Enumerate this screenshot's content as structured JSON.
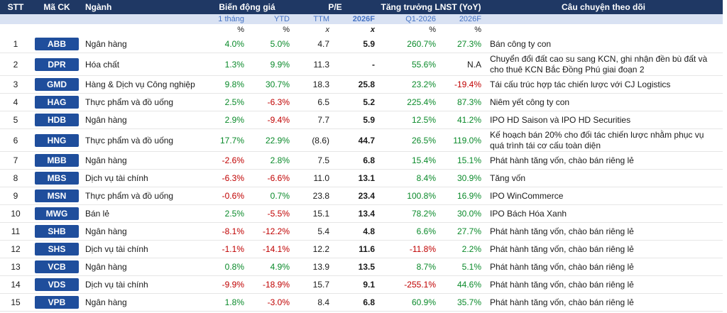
{
  "headers": {
    "stt": "STT",
    "ma_ck": "Mã CK",
    "nganh": "Ngành",
    "bien_dong": "Biến động giá",
    "pe": "P/E",
    "tang_truong": "Tăng trưởng LNST (YoY)",
    "cau_chuyen": "Câu chuyện theo dõi",
    "sub_1thang": "1 tháng",
    "sub_ytd": "YTD",
    "sub_ttm": "TTM",
    "sub_2026f_pe": "2026F",
    "sub_q1": "Q1-2026",
    "sub_2026f_g": "2026F",
    "unit_pct": "%",
    "unit_x": "x"
  },
  "rows": [
    {
      "stt": "1",
      "ticker": "ABB",
      "nganh": "Ngân hàng",
      "m1": "4.0%",
      "m1_sign": "pos",
      "ytd": "5.0%",
      "ytd_sign": "pos",
      "ttm": "4.7",
      "pe26": "5.9",
      "q1": "260.7%",
      "q1_sign": "pos",
      "g26": "27.3%",
      "g26_sign": "pos",
      "story": "Bán công ty con"
    },
    {
      "stt": "2",
      "ticker": "DPR",
      "nganh": "Hóa chất",
      "m1": "1.3%",
      "m1_sign": "pos",
      "ytd": "9.9%",
      "ytd_sign": "pos",
      "ttm": "11.3",
      "pe26": "-",
      "q1": "55.6%",
      "q1_sign": "pos",
      "g26": "N.A",
      "g26_sign": "none",
      "story": "Chuyển đổi đất cao su sang KCN, ghi nhận đền bù đất và cho thuê KCN Bắc Đồng Phú giai đoạn 2"
    },
    {
      "stt": "3",
      "ticker": "GMD",
      "nganh": "Hàng & Dịch vụ Công nghiệp",
      "m1": "9.8%",
      "m1_sign": "pos",
      "ytd": "30.7%",
      "ytd_sign": "pos",
      "ttm": "18.3",
      "pe26": "25.8",
      "q1": "23.2%",
      "q1_sign": "pos",
      "g26": "-19.4%",
      "g26_sign": "neg",
      "story": "Tái cấu trúc hợp tác chiến lược với CJ Logistics"
    },
    {
      "stt": "4",
      "ticker": "HAG",
      "nganh": "Thực phẩm và đồ uống",
      "m1": "2.5%",
      "m1_sign": "pos",
      "ytd": "-6.3%",
      "ytd_sign": "neg",
      "ttm": "6.5",
      "pe26": "5.2",
      "q1": "225.4%",
      "q1_sign": "pos",
      "g26": "87.3%",
      "g26_sign": "pos",
      "story": "Niêm yết công ty con"
    },
    {
      "stt": "5",
      "ticker": "HDB",
      "nganh": "Ngân hàng",
      "m1": "2.9%",
      "m1_sign": "pos",
      "ytd": "-9.4%",
      "ytd_sign": "neg",
      "ttm": "7.7",
      "pe26": "5.9",
      "q1": "12.5%",
      "q1_sign": "pos",
      "g26": "41.2%",
      "g26_sign": "pos",
      "story": "IPO HD Saison và IPO HD Securities"
    },
    {
      "stt": "6",
      "ticker": "HNG",
      "nganh": "Thực phẩm và đồ uống",
      "m1": "17.7%",
      "m1_sign": "pos",
      "ytd": "22.9%",
      "ytd_sign": "pos",
      "ttm": "(8.6)",
      "pe26": "44.7",
      "q1": "26.5%",
      "q1_sign": "pos",
      "g26": "119.0%",
      "g26_sign": "pos",
      "story": "Kế hoạch bán 20% cho đối tác chiến lược nhằm phục vụ quá trình tái cơ cấu toàn diện"
    },
    {
      "stt": "7",
      "ticker": "MBB",
      "nganh": "Ngân hàng",
      "m1": "-2.6%",
      "m1_sign": "neg",
      "ytd": "2.8%",
      "ytd_sign": "pos",
      "ttm": "7.5",
      "pe26": "6.8",
      "q1": "15.4%",
      "q1_sign": "pos",
      "g26": "15.1%",
      "g26_sign": "pos",
      "story": "Phát hành tăng vốn, chào bán riêng lẻ"
    },
    {
      "stt": "8",
      "ticker": "MBS",
      "nganh": "Dịch vụ tài chính",
      "m1": "-6.3%",
      "m1_sign": "neg",
      "ytd": "-6.6%",
      "ytd_sign": "neg",
      "ttm": "11.0",
      "pe26": "13.1",
      "q1": "8.4%",
      "q1_sign": "pos",
      "g26": "30.9%",
      "g26_sign": "pos",
      "story": "Tăng vốn"
    },
    {
      "stt": "9",
      "ticker": "MSN",
      "nganh": "Thực phẩm và đồ uống",
      "m1": "-0.6%",
      "m1_sign": "neg",
      "ytd": "0.7%",
      "ytd_sign": "pos",
      "ttm": "23.8",
      "pe26": "23.4",
      "q1": "100.8%",
      "q1_sign": "pos",
      "g26": "16.9%",
      "g26_sign": "pos",
      "story": "IPO WinCommerce"
    },
    {
      "stt": "10",
      "ticker": "MWG",
      "nganh": "Bán lẻ",
      "m1": "2.5%",
      "m1_sign": "pos",
      "ytd": "-5.5%",
      "ytd_sign": "neg",
      "ttm": "15.1",
      "pe26": "13.4",
      "q1": "78.2%",
      "q1_sign": "pos",
      "g26": "30.0%",
      "g26_sign": "pos",
      "story": "IPO Bách Hóa Xanh"
    },
    {
      "stt": "11",
      "ticker": "SHB",
      "nganh": "Ngân hàng",
      "m1": "-8.1%",
      "m1_sign": "neg",
      "ytd": "-12.2%",
      "ytd_sign": "neg",
      "ttm": "5.4",
      "pe26": "4.8",
      "q1": "6.6%",
      "q1_sign": "pos",
      "g26": "27.7%",
      "g26_sign": "pos",
      "story": "Phát hành tăng vốn, chào bán riêng lẻ"
    },
    {
      "stt": "12",
      "ticker": "SHS",
      "nganh": "Dịch vụ tài chính",
      "m1": "-1.1%",
      "m1_sign": "neg",
      "ytd": "-14.1%",
      "ytd_sign": "neg",
      "ttm": "12.2",
      "pe26": "11.6",
      "q1": "-11.8%",
      "q1_sign": "neg",
      "g26": "2.2%",
      "g26_sign": "pos",
      "story": "Phát hành tăng vốn, chào bán riêng lẻ"
    },
    {
      "stt": "13",
      "ticker": "VCB",
      "nganh": "Ngân hàng",
      "m1": "0.8%",
      "m1_sign": "pos",
      "ytd": "4.9%",
      "ytd_sign": "pos",
      "ttm": "13.9",
      "pe26": "13.5",
      "q1": "8.7%",
      "q1_sign": "pos",
      "g26": "5.1%",
      "g26_sign": "pos",
      "story": "Phát hành tăng vốn, chào bán riêng lẻ"
    },
    {
      "stt": "14",
      "ticker": "VDS",
      "nganh": "Dịch vụ tài chính",
      "m1": "-9.9%",
      "m1_sign": "neg",
      "ytd": "-18.9%",
      "ytd_sign": "neg",
      "ttm": "15.7",
      "pe26": "9.1",
      "q1": "-255.1%",
      "q1_sign": "neg",
      "g26": "44.6%",
      "g26_sign": "pos",
      "story": "Phát hành tăng vốn, chào bán riêng lẻ"
    },
    {
      "stt": "15",
      "ticker": "VPB",
      "nganh": "Ngân hàng",
      "m1": "1.8%",
      "m1_sign": "pos",
      "ytd": "-3.0%",
      "ytd_sign": "neg",
      "ttm": "8.4",
      "pe26": "6.8",
      "q1": "60.9%",
      "q1_sign": "pos",
      "g26": "35.7%",
      "g26_sign": "pos",
      "story": "Phát hành tăng vốn, chào bán riêng lẻ"
    }
  ],
  "colors": {
    "header_bg": "#1f3864",
    "subheader_bg": "#d9e2f3",
    "ticker_bg": "#1f4e9c",
    "positive": "#0a8a2a",
    "negative": "#c00000"
  }
}
